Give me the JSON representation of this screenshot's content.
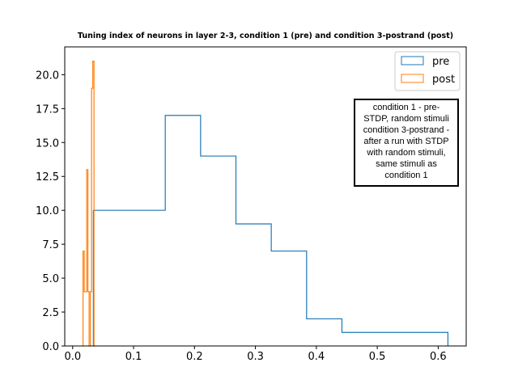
{
  "chart_data": {
    "type": "histogram",
    "title": "Tuning index of neurons in layer 2-3, condition 1 (pre) and condition 3-postrand (post)",
    "xlabel": "",
    "ylabel": "",
    "xlim": [
      -0.013,
      0.646
    ],
    "ylim": [
      0,
      22.05
    ],
    "xticks": [
      0.0,
      0.1,
      0.2,
      0.3,
      0.4,
      0.5,
      0.6
    ],
    "xtick_labels": [
      "0.0",
      "0.1",
      "0.2",
      "0.3",
      "0.4",
      "0.5",
      "0.6"
    ],
    "yticks": [
      0.0,
      2.5,
      5.0,
      7.5,
      10.0,
      12.5,
      15.0,
      17.5,
      20.0
    ],
    "ytick_labels": [
      "0.0",
      "2.5",
      "5.0",
      "7.5",
      "10.0",
      "12.5",
      "15.0",
      "17.5",
      "20.0"
    ],
    "grid": false,
    "legend_position": "top-right",
    "series": [
      {
        "name": "pre",
        "color": "#1f77b4",
        "histtype": "step",
        "bin_edges": [
          0.034,
          0.152,
          0.21,
          0.268,
          0.326,
          0.384,
          0.442,
          0.5,
          0.558,
          0.616
        ],
        "counts": [
          10,
          17,
          14,
          9,
          7,
          2,
          1,
          1,
          1
        ]
      },
      {
        "name": "post",
        "color": "#ff7f0e",
        "histtype": "step",
        "bin_edges": [
          0.017,
          0.019,
          0.021,
          0.023,
          0.025,
          0.027,
          0.029,
          0.031,
          0.033,
          0.035,
          0.037
        ],
        "counts": [
          7,
          4,
          4,
          13,
          4,
          0,
          4,
          19,
          21,
          0
        ]
      }
    ],
    "annotation": {
      "lines": [
        "condition 1 - pre-",
        "STDP, random stimuli",
        "condition 3-postrand -",
        "after a run with STDP",
        "with random stimuli,",
        "same stimuli as",
        "condition 1"
      ]
    }
  }
}
